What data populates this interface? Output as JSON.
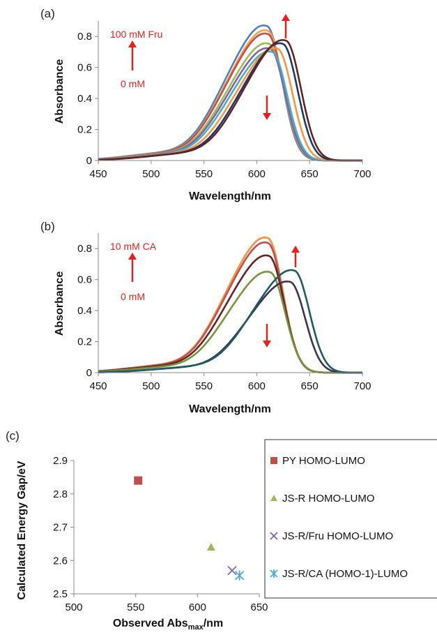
{
  "chart_data": [
    {
      "panel": "(a)",
      "type": "line",
      "xlabel": "Wavelength/nm",
      "ylabel": "Absorbance",
      "xlim": [
        450,
        700
      ],
      "ylim": [
        0,
        0.9
      ],
      "xticks": [
        450,
        500,
        550,
        600,
        650,
        700
      ],
      "yticks": [
        0,
        0.2,
        0.4,
        0.6,
        0.8
      ],
      "grid": false,
      "annotations": [
        "100 mM Fru",
        "0 mM"
      ],
      "series": [
        {
          "color": "#4f81bd",
          "peak_x": 610,
          "peak_y": 0.83
        },
        {
          "color": "#f4a14a",
          "peak_x": 611,
          "peak_y": 0.8
        },
        {
          "color": "#c0504d",
          "peak_x": 611,
          "peak_y": 0.78
        },
        {
          "color": "#9bbb59",
          "peak_x": 612,
          "peak_y": 0.72
        },
        {
          "color": "#8064a2",
          "peak_x": 613,
          "peak_y": 0.69
        },
        {
          "color": "#4bacc6",
          "peak_x": 615,
          "peak_y": 0.67
        },
        {
          "color": "#f79646",
          "peak_x": 620,
          "peak_y": 0.69
        },
        {
          "color": "#1f3864",
          "peak_x": 625,
          "peak_y": 0.72
        },
        {
          "color": "#632523",
          "peak_x": 628,
          "peak_y": 0.74
        }
      ]
    },
    {
      "panel": "(b)",
      "type": "line",
      "xlabel": "Wavelength/nm",
      "ylabel": "Absorbance",
      "xlim": [
        450,
        700
      ],
      "ylim": [
        0,
        0.9
      ],
      "xticks": [
        450,
        500,
        550,
        600,
        650,
        700
      ],
      "yticks": [
        0,
        0.2,
        0.4,
        0.6,
        0.8
      ],
      "grid": false,
      "annotations": [
        "10 mM CA",
        "0 mM"
      ],
      "series": [
        {
          "color": "#4f81bd",
          "peak_x": 611,
          "peak_y": 0.83
        },
        {
          "color": "#f79646",
          "peak_x": 611,
          "peak_y": 0.83
        },
        {
          "color": "#c0504d",
          "peak_x": 611,
          "peak_y": 0.8
        },
        {
          "color": "#632523",
          "peak_x": 612,
          "peak_y": 0.72
        },
        {
          "color": "#77933c",
          "peak_x": 613,
          "peak_y": 0.62
        },
        {
          "color": "#403152",
          "peak_x": 632,
          "peak_y": 0.56
        },
        {
          "color": "#215968",
          "peak_x": 636,
          "peak_y": 0.63
        }
      ]
    },
    {
      "panel": "(c)",
      "type": "scatter",
      "xlabel": "Observed Abs",
      "xlabel_sub": "max",
      "xlabel_suffix": "/nm",
      "ylabel": "Calculated Energy Gap/eV",
      "xlim": [
        500,
        650
      ],
      "ylim": [
        2.5,
        2.9
      ],
      "xticks": [
        500,
        550,
        600,
        650
      ],
      "yticks": [
        2.5,
        2.6,
        2.7,
        2.8,
        2.9
      ],
      "grid": false,
      "legend_position": "right",
      "series": [
        {
          "name": "PY HOMO-LUMO",
          "marker": "square",
          "color": "#c0504d",
          "x": 552,
          "y": 2.84
        },
        {
          "name": "JS-R HOMO-LUMO",
          "marker": "triangle",
          "color": "#9bbb59",
          "x": 611,
          "y": 2.64
        },
        {
          "name": "JS-R/Fru HOMO-LUMO",
          "marker": "x",
          "color": "#8064a2",
          "x": 628,
          "y": 2.57
        },
        {
          "name": "JS-R/CA (HOMO-1)-LUMO",
          "marker": "star",
          "color": "#4bacc6",
          "x": 634,
          "y": 2.555
        }
      ]
    }
  ],
  "arrow_color": "#e5211d"
}
